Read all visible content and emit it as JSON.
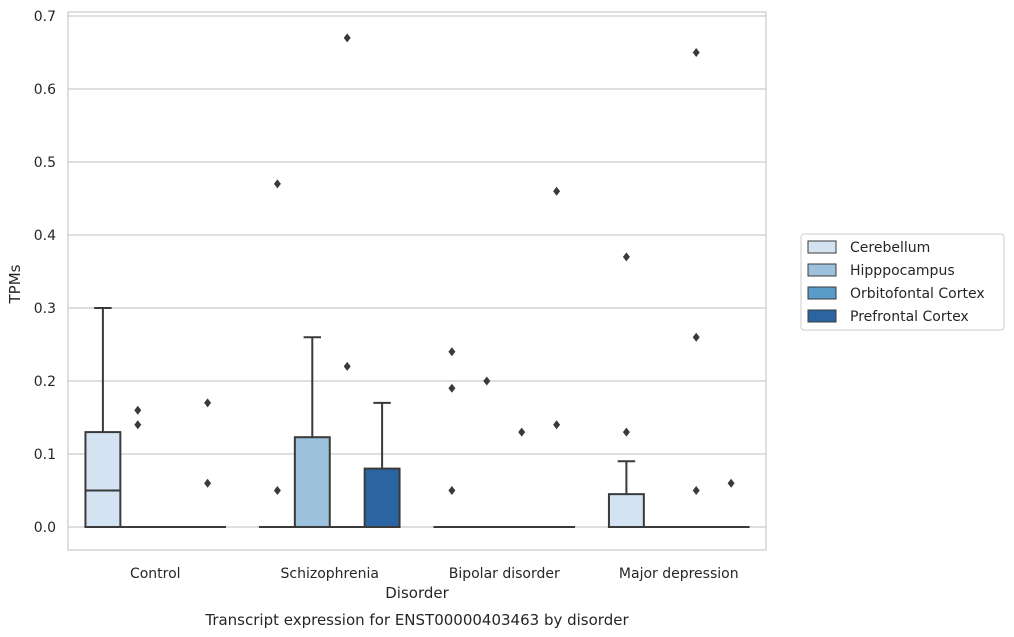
{
  "chart_data": {
    "type": "box",
    "title": "",
    "caption": "Transcript expression for ENST00000403463 by disorder",
    "xlabel": "Disorder",
    "ylabel": "TPMs",
    "ylim": [
      -0.032,
      0.705
    ],
    "yticks": [
      0.0,
      0.1,
      0.2,
      0.3,
      0.4,
      0.5,
      0.6,
      0.7
    ],
    "ytick_labels": [
      "0.0",
      "0.1",
      "0.2",
      "0.3",
      "0.4",
      "0.5",
      "0.6",
      "0.7"
    ],
    "grid": "horizontal",
    "legend_position": "right",
    "categories": [
      "Control",
      "Schizophrenia",
      "Bipolar disorder",
      "Major depression"
    ],
    "series": [
      {
        "name": "Cerebellum",
        "color": "#d3e3f1",
        "boxes": [
          {
            "q1": 0.0,
            "median": 0.05,
            "q3": 0.13,
            "whisker_low": 0.0,
            "whisker_high": 0.3,
            "outliers": []
          },
          {
            "q1": 0.0,
            "median": 0.0,
            "q3": 0.0,
            "whisker_low": 0.0,
            "whisker_high": 0.0,
            "outliers": [
              0.47,
              0.05
            ]
          },
          {
            "q1": 0.0,
            "median": 0.0,
            "q3": 0.0,
            "whisker_low": 0.0,
            "whisker_high": 0.0,
            "outliers": [
              0.24,
              0.19,
              0.05
            ]
          },
          {
            "q1": 0.0,
            "median": 0.0,
            "q3": 0.045,
            "whisker_low": 0.0,
            "whisker_high": 0.09,
            "outliers": [
              0.37,
              0.13
            ]
          }
        ]
      },
      {
        "name": "Hipppocampus",
        "color": "#9bc1dc",
        "boxes": [
          {
            "q1": 0.0,
            "median": 0.0,
            "q3": 0.0,
            "whisker_low": 0.0,
            "whisker_high": 0.0,
            "outliers": [
              0.16,
              0.14
            ]
          },
          {
            "q1": 0.0,
            "median": 0.0,
            "q3": 0.123,
            "whisker_low": 0.0,
            "whisker_high": 0.26,
            "outliers": []
          },
          {
            "q1": 0.0,
            "median": 0.0,
            "q3": 0.0,
            "whisker_low": 0.0,
            "whisker_high": 0.0,
            "outliers": [
              0.2
            ]
          },
          {
            "q1": 0.0,
            "median": 0.0,
            "q3": 0.0,
            "whisker_low": 0.0,
            "whisker_high": 0.0,
            "outliers": []
          }
        ]
      },
      {
        "name": "Orbitofontal Cortex",
        "color": "#5a9bc9",
        "boxes": [
          {
            "q1": 0.0,
            "median": 0.0,
            "q3": 0.0,
            "whisker_low": 0.0,
            "whisker_high": 0.0,
            "outliers": []
          },
          {
            "q1": 0.0,
            "median": 0.0,
            "q3": 0.0,
            "whisker_low": 0.0,
            "whisker_high": 0.0,
            "outliers": [
              0.67,
              0.22
            ]
          },
          {
            "q1": 0.0,
            "median": 0.0,
            "q3": 0.0,
            "whisker_low": 0.0,
            "whisker_high": 0.0,
            "outliers": [
              0.13
            ]
          },
          {
            "q1": 0.0,
            "median": 0.0,
            "q3": 0.0,
            "whisker_low": 0.0,
            "whisker_high": 0.0,
            "outliers": [
              0.65,
              0.26,
              0.05
            ]
          }
        ]
      },
      {
        "name": "Prefrontal Cortex",
        "color": "#2a64a3",
        "boxes": [
          {
            "q1": 0.0,
            "median": 0.0,
            "q3": 0.0,
            "whisker_low": 0.0,
            "whisker_high": 0.0,
            "outliers": [
              0.17,
              0.06
            ]
          },
          {
            "q1": 0.0,
            "median": 0.0,
            "q3": 0.08,
            "whisker_low": 0.0,
            "whisker_high": 0.17,
            "outliers": []
          },
          {
            "q1": 0.0,
            "median": 0.0,
            "q3": 0.0,
            "whisker_low": 0.0,
            "whisker_high": 0.0,
            "outliers": [
              0.46,
              0.14
            ]
          },
          {
            "q1": 0.0,
            "median": 0.0,
            "q3": 0.0,
            "whisker_low": 0.0,
            "whisker_high": 0.0,
            "outliers": [
              0.06
            ]
          }
        ]
      }
    ]
  }
}
